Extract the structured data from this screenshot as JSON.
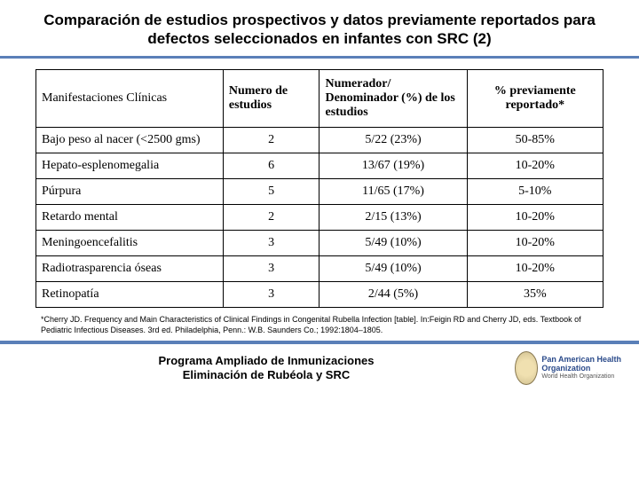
{
  "title": "Comparación de estudios prospectivos y datos previamente reportados para defectos seleccionados en infantes con SRC (2)",
  "table": {
    "columns": [
      {
        "label": "Manifestaciones Clínicas",
        "align": "left",
        "header_bold": false
      },
      {
        "label": "Numero de estudios",
        "align": "left",
        "header_bold": true
      },
      {
        "label": "Numerador/ Denominador (%) de los estudios",
        "align": "left",
        "header_bold": true
      },
      {
        "label": "% previamente reportado*",
        "align": "center",
        "header_bold": true
      }
    ],
    "rows": [
      {
        "c1": "Bajo peso al nacer (<2500 gms)",
        "c2": "2",
        "c3": "5/22 (23%)",
        "c4": "50-85%"
      },
      {
        "c1": "Hepato-esplenomegalia",
        "c2": "6",
        "c3": "13/67 (19%)",
        "c4": "10-20%"
      },
      {
        "c1": "Púrpura",
        "c2": "5",
        "c3": "11/65 (17%)",
        "c4": "5-10%"
      },
      {
        "c1": "Retardo mental",
        "c2": "2",
        "c3": "2/15 (13%)",
        "c4": "10-20%"
      },
      {
        "c1": "Meningoencefalitis",
        "c2": "3",
        "c3": "5/49 (10%)",
        "c4": "10-20%"
      },
      {
        "c1": "Radiotrasparencia óseas",
        "c2": "3",
        "c3": "5/49 (10%)",
        "c4": "10-20%"
      },
      {
        "c1": "Retinopatía",
        "c2": "3",
        "c3": "2/44 (5%)",
        "c4": "35%"
      }
    ]
  },
  "footnote": "*Cherry JD. Frequency and Main Characteristics of Clinical Findings in Congenital Rubella Infection [table]. In:Feigin RD and Cherry JD, eds. Textbook of Pediatric Infectious Diseases. 3rd ed. Philadelphia, Penn.: W.B. Saunders Co.; 1992:1804–1805.",
  "footer": {
    "line1": "Programa Ampliado de Inmunizaciones",
    "line2": "Eliminación de Rubéola y SRC"
  },
  "logo": {
    "org1": "Pan American Health Organization",
    "org2": "World Health Organization"
  },
  "colors": {
    "rule": "#5a7fb8",
    "border": "#000000",
    "bg": "#ffffff"
  }
}
